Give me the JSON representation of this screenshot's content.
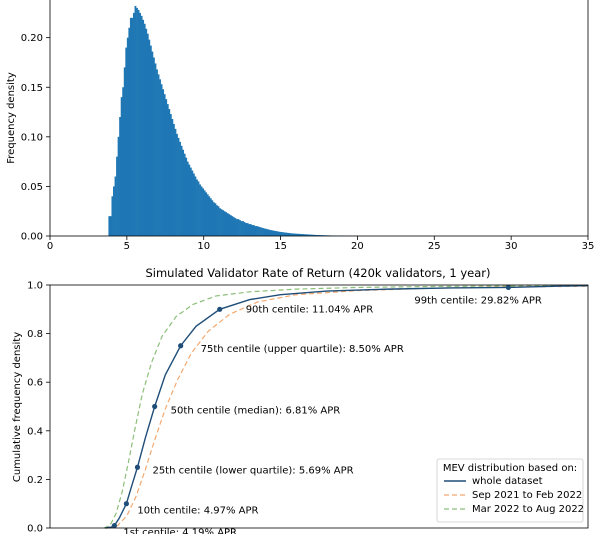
{
  "chart_data": [
    {
      "type": "bar",
      "ylabel": "Frequency density",
      "xlim": [
        0,
        35
      ],
      "ylim": [
        0,
        0.24
      ],
      "xticks": [
        "0",
        "5",
        "10",
        "15",
        "20",
        "25",
        "30",
        "35"
      ],
      "yticks": [
        "0.00",
        "0.05",
        "0.10",
        "0.15",
        "0.20"
      ],
      "color": "#1f77b4",
      "bin_width": 0.1,
      "x_start": 3.8,
      "values": [
        0.02,
        0.02,
        0.04,
        0.05,
        0.06,
        0.08,
        0.1,
        0.12,
        0.14,
        0.15,
        0.17,
        0.19,
        0.2,
        0.21,
        0.22,
        0.22,
        0.225,
        0.232,
        0.23,
        0.228,
        0.225,
        0.222,
        0.218,
        0.214,
        0.209,
        0.204,
        0.198,
        0.192,
        0.186,
        0.18,
        0.174,
        0.168,
        0.163,
        0.158,
        0.153,
        0.148,
        0.143,
        0.138,
        0.133,
        0.128,
        0.123,
        0.118,
        0.113,
        0.108,
        0.103,
        0.099,
        0.095,
        0.091,
        0.087,
        0.083,
        0.079,
        0.075,
        0.072,
        0.069,
        0.066,
        0.063,
        0.06,
        0.057,
        0.055,
        0.052,
        0.05,
        0.048,
        0.046,
        0.044,
        0.042,
        0.04,
        0.038,
        0.036,
        0.034,
        0.033,
        0.031,
        0.03,
        0.028,
        0.027,
        0.026,
        0.025,
        0.024,
        0.023,
        0.022,
        0.021,
        0.02,
        0.019,
        0.018,
        0.017,
        0.017,
        0.016,
        0.015,
        0.015,
        0.014,
        0.013,
        0.013,
        0.012,
        0.012,
        0.011,
        0.011,
        0.01,
        0.01,
        0.0095,
        0.009,
        0.0085,
        0.008,
        0.0076,
        0.0072,
        0.0068,
        0.0064,
        0.006,
        0.0057,
        0.0054,
        0.0051,
        0.0048,
        0.0045,
        0.0042,
        0.004,
        0.0038,
        0.0036,
        0.0034,
        0.0032,
        0.003,
        0.0028,
        0.0026,
        0.0025,
        0.0024,
        0.0023,
        0.0022,
        0.0021,
        0.002,
        0.0019,
        0.0018,
        0.0017,
        0.0016,
        0.0015,
        0.0014,
        0.0013,
        0.0012,
        0.0011,
        0.001,
        0.001,
        0.0009,
        0.0009,
        0.0008,
        0.0008,
        0.0007,
        0.0007,
        0.0006,
        0.0006,
        0.0005,
        0.0005,
        0.0005,
        0.0004,
        0.0004,
        0.0004,
        0.0003,
        0.0003,
        0.0003,
        0.0003,
        0.0002,
        0.0002,
        0.0002,
        0.0002,
        0.0002,
        0.0002,
        0.0001,
        0.0001,
        0.0001,
        0.0001,
        0.0001,
        0.0001
      ]
    },
    {
      "type": "line",
      "title": "Simulated Validator Rate of Return (420k validators, 1 year)",
      "ylabel": "Cumulative frequency density",
      "xlim": [
        0,
        35
      ],
      "ylim": [
        0,
        1.0
      ],
      "yticks": [
        "0.0",
        "0.2",
        "0.4",
        "0.6",
        "0.8",
        "1.0"
      ],
      "legend": {
        "title": "MEV distribution based on:",
        "placement": "lower-right"
      },
      "series": [
        {
          "name": "whole dataset",
          "color": "#1f4e79",
          "style": "solid",
          "x": [
            3.6,
            4.0,
            4.19,
            4.5,
            4.97,
            5.3,
            5.69,
            6.2,
            6.81,
            7.5,
            8.5,
            9.5,
            11.04,
            13,
            15,
            18,
            22,
            26,
            29.82,
            33,
            35
          ],
          "y": [
            0.0,
            0.004,
            0.01,
            0.04,
            0.1,
            0.17,
            0.25,
            0.37,
            0.5,
            0.63,
            0.75,
            0.83,
            0.9,
            0.94,
            0.96,
            0.975,
            0.983,
            0.988,
            0.99,
            0.995,
            0.997
          ]
        },
        {
          "name": "Sep 2021 to Feb 2022",
          "color": "#f2a86f",
          "style": "dashed",
          "x": [
            3.8,
            4.4,
            5.0,
            5.6,
            6.2,
            6.8,
            7.5,
            8.3,
            9.2,
            10.3,
            11.7,
            13.5,
            16,
            20,
            25,
            30,
            35
          ],
          "y": [
            0.0,
            0.01,
            0.05,
            0.13,
            0.24,
            0.36,
            0.49,
            0.61,
            0.72,
            0.81,
            0.88,
            0.93,
            0.96,
            0.977,
            0.987,
            0.992,
            0.995
          ]
        },
        {
          "name": "Mar 2022 to Aug 2022",
          "color": "#8cbf7a",
          "style": "dashed",
          "x": [
            3.5,
            3.9,
            4.3,
            4.7,
            5.1,
            5.5,
            6.0,
            6.6,
            7.3,
            8.2,
            9.3,
            10.8,
            13,
            16,
            20,
            25,
            30,
            35
          ],
          "y": [
            0.0,
            0.01,
            0.06,
            0.15,
            0.27,
            0.4,
            0.55,
            0.68,
            0.79,
            0.87,
            0.92,
            0.955,
            0.972,
            0.983,
            0.99,
            0.994,
            0.996,
            0.998
          ]
        }
      ],
      "markers": [
        {
          "x": 4.19,
          "y": 0.01,
          "label": "1st centile: 4.19% APR"
        },
        {
          "x": 4.97,
          "y": 0.1,
          "label": "10th centile: 4.97% APR"
        },
        {
          "x": 5.69,
          "y": 0.25,
          "label": "25th centile (lower quartile): 5.69% APR"
        },
        {
          "x": 6.81,
          "y": 0.5,
          "label": "50th centile (median): 6.81% APR"
        },
        {
          "x": 8.5,
          "y": 0.75,
          "label": "75th centile (upper quartile): 8.50% APR"
        },
        {
          "x": 11.04,
          "y": 0.9,
          "label": "90th centile: 11.04% APR"
        },
        {
          "x": 29.82,
          "y": 0.99,
          "label": "99th centile: 29.82% APR"
        }
      ]
    }
  ]
}
